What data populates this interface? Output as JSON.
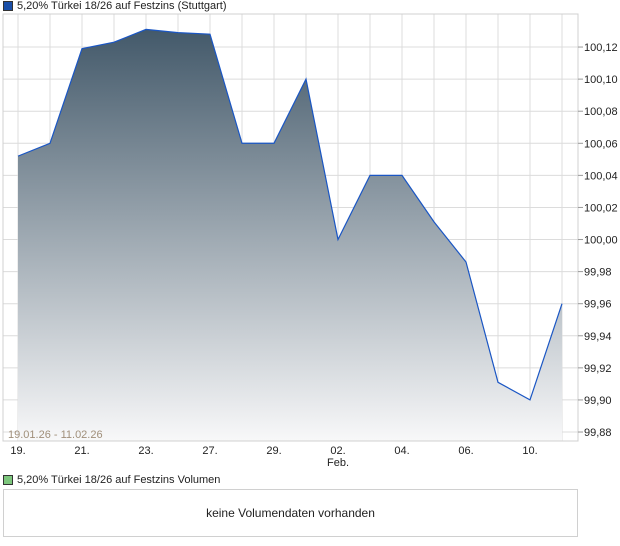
{
  "legend_main": "5,20% Türkei 18/26 auf Festzins (Stuttgart)",
  "legend_volume": "5,20% Türkei 18/26 auf Festzins Volumen",
  "volume_message": "keine Volumendaten vorhanden",
  "date_range": "19.01.26 - 11.02.26",
  "colors": {
    "line": "#1a56c4",
    "fill_top": "#43596a",
    "fill_bottom": "#f8f8f9",
    "grid": "#dcdcdc",
    "series_square": "#1a4fa8",
    "volume_square": "#7cc67c"
  },
  "chart_data": {
    "type": "area",
    "title": "5,20% Türkei 18/26 auf Festzins (Stuttgart)",
    "x": [
      "19.01.",
      "20.01.",
      "21.01.",
      "22.01.",
      "23.01.",
      "26.01.",
      "27.01.",
      "28.01.",
      "29.01.",
      "30.01.",
      "02.02.",
      "03.02.",
      "04.02.",
      "05.02.",
      "06.02.",
      "09.02.",
      "10.02.",
      "11.02."
    ],
    "values": [
      100.052,
      100.06,
      100.119,
      100.123,
      100.131,
      100.129,
      100.128,
      100.06,
      100.06,
      100.1,
      100.0,
      100.04,
      100.04,
      100.011,
      99.986,
      99.911,
      99.9,
      99.96
    ],
    "x_tick_labels": [
      "19.",
      "21.",
      "23.",
      "27.",
      "29.",
      "02.",
      "04.",
      "06.",
      "10."
    ],
    "x_tick_indices": [
      0,
      2,
      4,
      6,
      8,
      10,
      12,
      14,
      16
    ],
    "x_sublabel": "Feb.",
    "y_tick_labels": [
      "100,12",
      "100,10",
      "100,08",
      "100,06",
      "100,04",
      "100,02",
      "100,00",
      "99,98",
      "99,96",
      "99,94",
      "99,92",
      "99,90",
      "99,88"
    ],
    "y_ticks": [
      100.12,
      100.1,
      100.08,
      100.06,
      100.04,
      100.02,
      100.0,
      99.98,
      99.96,
      99.94,
      99.92,
      99.9,
      99.88
    ],
    "ylim": [
      99.8744,
      100.1406
    ],
    "grid": true,
    "y_axis_position": "right"
  }
}
